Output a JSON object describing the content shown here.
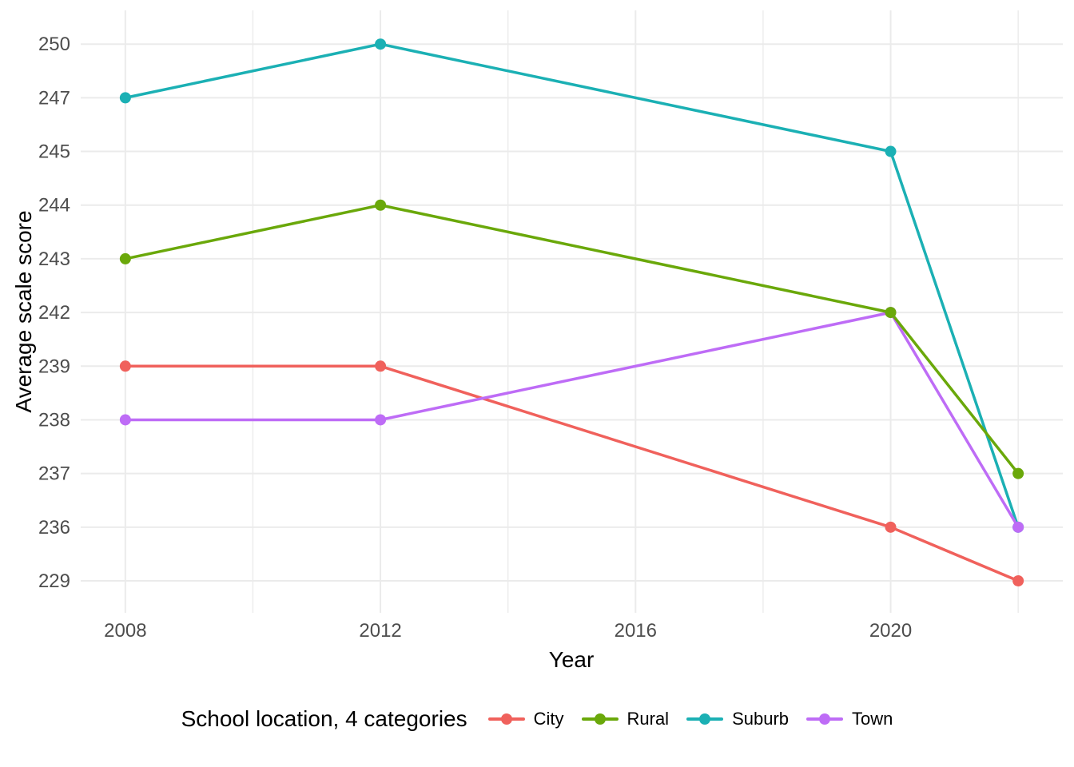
{
  "chart_data": {
    "type": "line",
    "title": "",
    "xlabel": "Year",
    "ylabel": "Average scale score",
    "x": [
      2008,
      2012,
      2020,
      2022
    ],
    "series": [
      {
        "name": "City",
        "color": "#F0615C",
        "values": [
          239,
          239,
          236,
          229
        ]
      },
      {
        "name": "Rural",
        "color": "#6AA80A",
        "values": [
          243,
          244,
          242,
          237
        ]
      },
      {
        "name": "Suburb",
        "color": "#1BB0B4",
        "values": [
          247,
          250,
          245,
          236
        ]
      },
      {
        "name": "Town",
        "color": "#BE6CF6",
        "values": [
          238,
          238,
          242,
          236
        ]
      }
    ],
    "draw_order": [
      "City",
      "Suburb",
      "Town",
      "Rural"
    ],
    "x_ticks": [
      2008,
      2012,
      2016,
      2020
    ],
    "x_minor_ticks": [
      2010,
      2014,
      2018,
      2022
    ],
    "y_axis_type": "discrete",
    "y_ticks": [
      250,
      247,
      245,
      244,
      243,
      242,
      239,
      238,
      237,
      236,
      229
    ],
    "xlim": [
      2007.3,
      2022.7
    ],
    "grid": true,
    "gridline_color": "#EBEBEB",
    "tick_label_color": "#4D4D4D",
    "legend_position": "bottom"
  },
  "legend": {
    "title": "School location, 4 categories",
    "items": [
      {
        "label": "City",
        "color": "#F0615C"
      },
      {
        "label": "Rural",
        "color": "#6AA80A"
      },
      {
        "label": "Suburb",
        "color": "#1BB0B4"
      },
      {
        "label": "Town",
        "color": "#BE6CF6"
      }
    ]
  }
}
